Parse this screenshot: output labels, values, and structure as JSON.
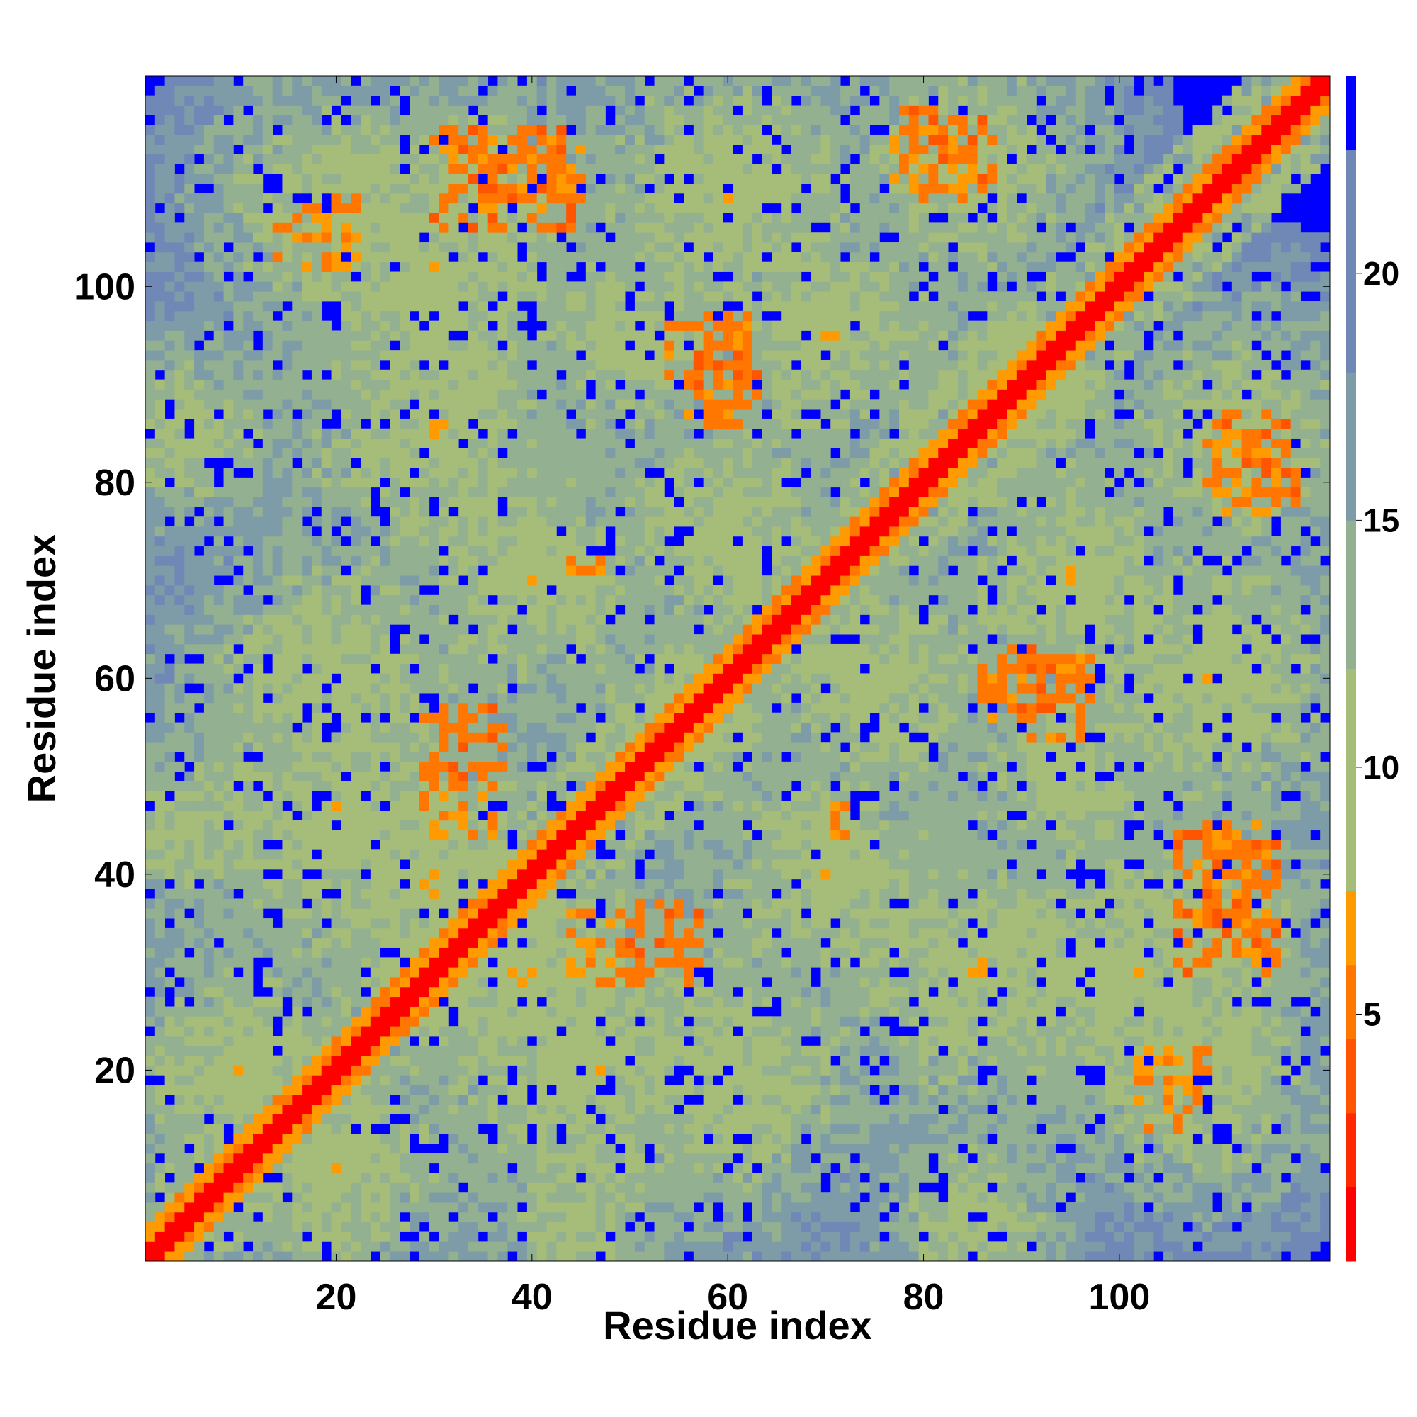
{
  "chart_data": {
    "type": "heatmap",
    "title": "",
    "xlabel": "Residue index",
    "ylabel": "Residue index",
    "xlim": [
      1,
      121
    ],
    "ylim": [
      1,
      121
    ],
    "x_ticks": [
      20,
      40,
      60,
      80,
      100
    ],
    "y_ticks": [
      20,
      40,
      60,
      80,
      100
    ],
    "colorbar": {
      "range": [
        0,
        24
      ],
      "ticks": [
        5,
        10,
        15,
        20
      ],
      "levels": [
        {
          "from": 0,
          "to": 1.5,
          "color": "#ff0000"
        },
        {
          "from": 1.5,
          "to": 3,
          "color": "#ff2a00"
        },
        {
          "from": 3,
          "to": 4.5,
          "color": "#ff5500"
        },
        {
          "from": 4.5,
          "to": 6,
          "color": "#ff7700"
        },
        {
          "from": 6,
          "to": 7.5,
          "color": "#ff9a00"
        },
        {
          "from": 7.5,
          "to": 12,
          "color": "#a6bd7a"
        },
        {
          "from": 12,
          "to": 15,
          "color": "#93b090"
        },
        {
          "from": 15,
          "to": 18,
          "color": "#7d9ca8"
        },
        {
          "from": 18,
          "to": 22.5,
          "color": "#6f88b5"
        },
        {
          "from": 22.5,
          "to": 24,
          "color": "#0000ff"
        }
      ]
    },
    "colors": {
      "background": "#0000ff",
      "diagonal": "#ff0000"
    },
    "grid": false,
    "legend": "right colorbar",
    "description_of_values": "Residue-residue distance map; symmetric about the diagonal, values near 0 on the diagonal, high (saturated blue) for distant pairs.",
    "contact_regions": [
      {
        "i": [
          1,
          121
        ],
        "j": [
          1,
          121
        ],
        "band": "diagonal"
      },
      {
        "i": [
          30,
          36
        ],
        "j": [
          49,
          57
        ],
        "level": 5
      },
      {
        "i": [
          44,
          48
        ],
        "j": [
          29,
          36
        ],
        "level": 6
      },
      {
        "i": [
          49,
          56
        ],
        "j": [
          28,
          37
        ],
        "level": 5
      },
      {
        "i": [
          54,
          62
        ],
        "j": [
          87,
          96
        ],
        "level": 6
      },
      {
        "i": [
          31,
          45
        ],
        "j": [
          108,
          115
        ],
        "level": 6
      },
      {
        "i": [
          78,
          87
        ],
        "j": [
          110,
          118
        ],
        "level": 5
      },
      {
        "i": [
          86,
          97
        ],
        "j": [
          57,
          63
        ],
        "level": 5
      },
      {
        "i": [
          102,
          106
        ],
        "j": [
          14,
          22
        ],
        "level": 6
      },
      {
        "i": [
          106,
          116
        ],
        "j": [
          30,
          44
        ],
        "level": 5
      },
      {
        "i": [
          109,
          116
        ],
        "j": [
          77,
          85
        ],
        "level": 6
      },
      {
        "i": [
          16,
          22
        ],
        "j": [
          105,
          109
        ],
        "level": 6
      },
      {
        "i": [
          44,
          48
        ],
        "j": [
          70,
          73
        ],
        "level": 6
      }
    ]
  }
}
